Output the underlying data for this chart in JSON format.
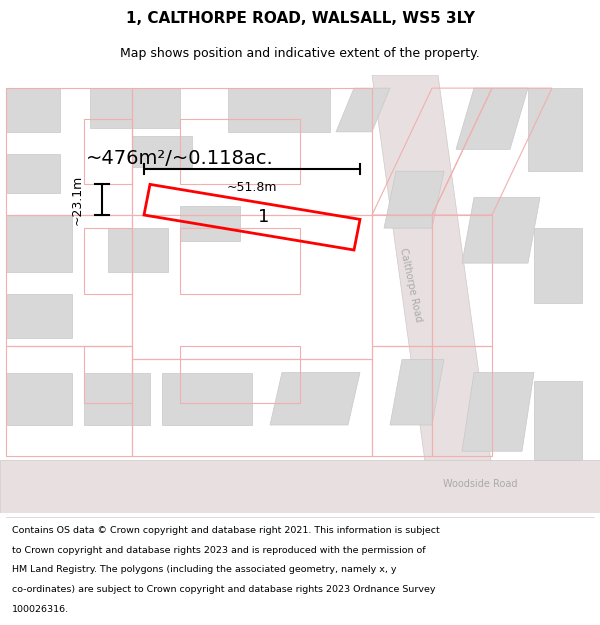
{
  "title": "1, CALTHORPE ROAD, WALSALL, WS5 3LY",
  "subtitle": "Map shows position and indicative extent of the property.",
  "title_fontsize": 11,
  "subtitle_fontsize": 9,
  "bg_color": "#ffffff",
  "footer_lines": [
    "Contains OS data © Crown copyright and database right 2021. This information is subject",
    "to Crown copyright and database rights 2023 and is reproduced with the permission of",
    "HM Land Registry. The polygons (including the associated geometry, namely x, y",
    "co-ordinates) are subject to Crown copyright and database rights 2023 Ordnance Survey",
    "100026316."
  ],
  "area_label": "~476m²/~0.118ac.",
  "width_label": "~51.8m",
  "height_label": "~23.1m",
  "property_label": "1",
  "road_label_calthorpe": "Calthorpe Road",
  "road_label_woodside": "Woodside Road",
  "red_color": "#ff0000",
  "dim_line_color": "#000000",
  "road_text_color": "#aaaaaa",
  "building_fill": "#d8d8d8",
  "building_stroke": "#c8c8c8",
  "road_fill": "#e8e0e0",
  "outline_color": "#f0b0b0",
  "map_bg": "#f5f0f0"
}
